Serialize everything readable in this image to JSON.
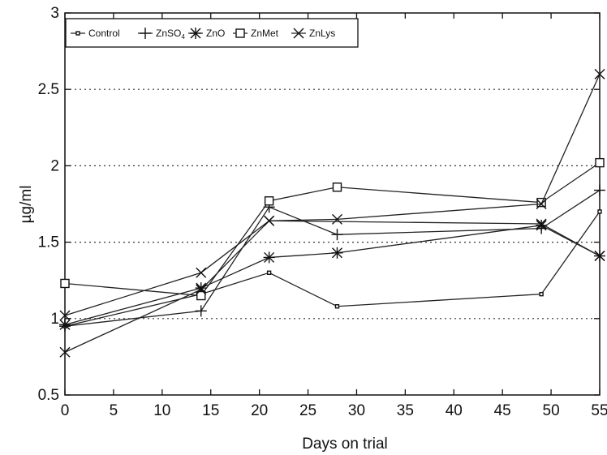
{
  "chart_data": {
    "type": "line",
    "title": "",
    "xlabel": "Days on trial",
    "ylabel": "µg/ml",
    "xlim": [
      0,
      55
    ],
    "ylim": [
      0.5,
      3
    ],
    "xticks": [
      0,
      5,
      10,
      15,
      20,
      25,
      30,
      35,
      40,
      45,
      50,
      55
    ],
    "yticks": [
      0.5,
      1,
      1.5,
      2,
      2.5,
      3
    ],
    "ytick_labels": [
      "0.5",
      "1",
      "1.5",
      "2",
      "2.5",
      "3"
    ],
    "grid": "horizontal dotted",
    "legend_position": "top-left",
    "series": [
      {
        "name": "Control",
        "marker": "small-square",
        "x": [
          0,
          14,
          21,
          28,
          49,
          55
        ],
        "y": [
          0.95,
          1.16,
          1.3,
          1.08,
          1.16,
          1.7
        ]
      },
      {
        "name": "ZnSO4",
        "name_base": "ZnSO",
        "name_sub": "4",
        "marker": "plus",
        "x": [
          0,
          14,
          21,
          28,
          49,
          55
        ],
        "y": [
          0.95,
          1.05,
          1.73,
          1.55,
          1.59,
          1.84
        ]
      },
      {
        "name": "ZnO",
        "marker": "asterisk",
        "x": [
          0,
          14,
          21,
          28,
          49,
          55
        ],
        "y": [
          0.96,
          1.2,
          1.4,
          1.43,
          1.61,
          1.41
        ]
      },
      {
        "name": "ZnMet",
        "marker": "square",
        "x": [
          0,
          14,
          21,
          28,
          49,
          55
        ],
        "y": [
          1.23,
          1.15,
          1.77,
          1.86,
          1.76,
          2.02
        ]
      },
      {
        "name": "ZnLys",
        "marker": "x",
        "x": [
          0,
          14,
          21,
          28,
          49,
          55
        ],
        "y": [
          0.78,
          1.19,
          1.64,
          1.65,
          1.75,
          2.6
        ]
      },
      {
        "name": "",
        "marker": "x",
        "x": [
          0,
          14,
          21,
          49,
          55
        ],
        "y": [
          1.02,
          1.3,
          1.64,
          1.62,
          1.41
        ]
      }
    ]
  }
}
